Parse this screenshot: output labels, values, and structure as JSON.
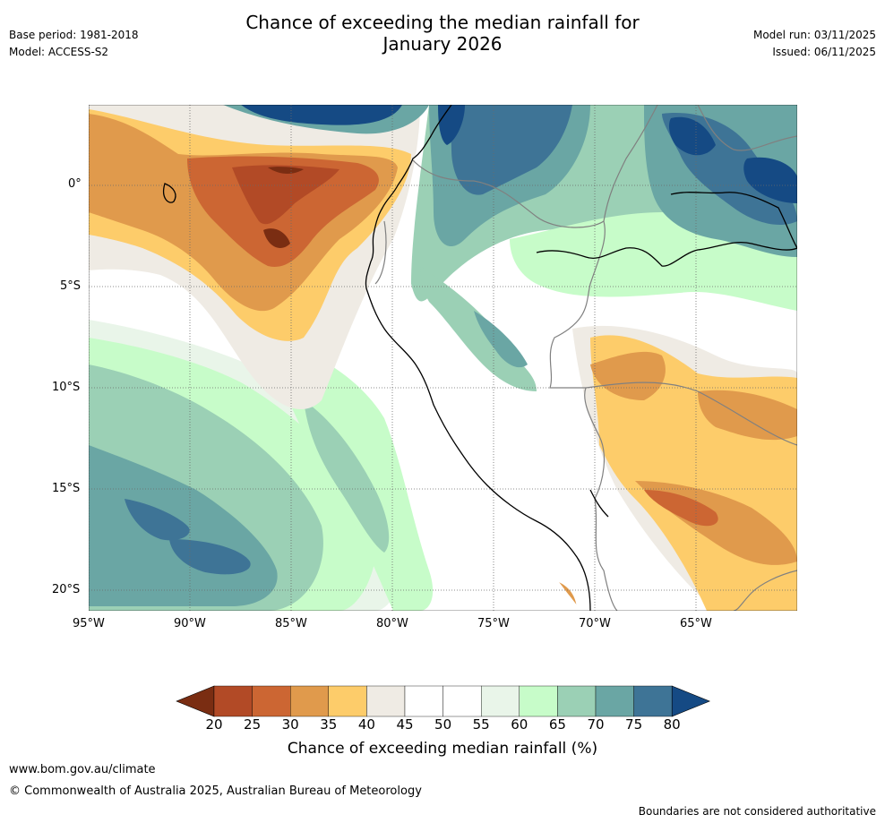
{
  "header": {
    "title_line1": "Chance of exceeding the median rainfall for",
    "title_line2": "January 2026",
    "base_period": "Base period: 1981-2018",
    "model": "Model: ACCESS-S2",
    "model_run": "Model run: 03/11/2025",
    "issued": "Issued: 06/11/2025"
  },
  "map": {
    "lat_labels": [
      "0°",
      "5°S",
      "10°S",
      "15°S",
      "20°S"
    ],
    "lon_labels": [
      "95°W",
      "90°W",
      "85°W",
      "80°W",
      "75°W",
      "70°W",
      "65°W"
    ]
  },
  "legend": {
    "ticks": [
      "20",
      "25",
      "30",
      "35",
      "40",
      "45",
      "50",
      "55",
      "60",
      "65",
      "70",
      "75",
      "80"
    ],
    "colors": [
      "#7a2d12",
      "#b24a26",
      "#cc6633",
      "#e09a4c",
      "#fdcc6a",
      "#efebe4",
      "#ffffff",
      "#ffffff",
      "#e9f5e9",
      "#c7fcc9",
      "#9bd0b5",
      "#6aa6a4",
      "#3e7496",
      "#154a84"
    ],
    "label": "Chance of exceeding median rainfall (%)"
  },
  "footer": {
    "url": "www.bom.gov.au/climate",
    "copyright": "© Commonwealth of Australia 2025, Australian Bureau of Meteorology",
    "disclaimer": "Boundaries are not considered authoritative"
  }
}
